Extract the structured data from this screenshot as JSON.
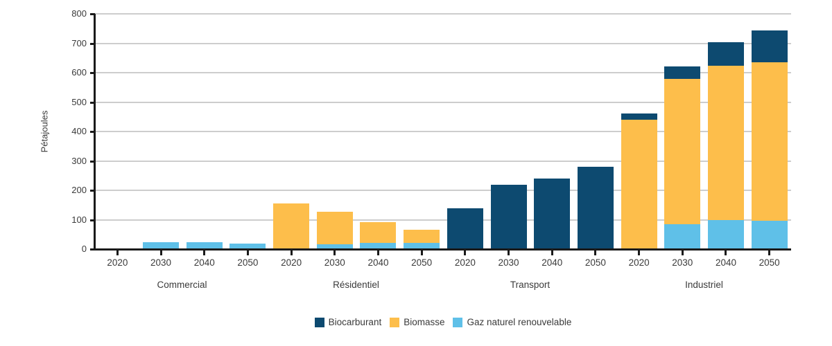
{
  "chart_data": {
    "type": "bar",
    "stacked": true,
    "grid": "horizontal",
    "ylabel": "Pétajoules",
    "xlabel": "",
    "ylim": [
      0,
      800
    ],
    "yticks": [
      0,
      100,
      200,
      300,
      400,
      500,
      600,
      700,
      800
    ],
    "legend_position": "bottom-center",
    "years": [
      "2020",
      "2030",
      "2040",
      "2050"
    ],
    "stack_bottom_to_top": [
      "gaz",
      "biomasse",
      "biocarburant"
    ],
    "series": [
      {
        "key": "biocarburant",
        "label": "Biocarburant",
        "color": "#0d4a70"
      },
      {
        "key": "biomasse",
        "label": "Biomasse",
        "color": "#fdbe4b"
      },
      {
        "key": "gaz",
        "label": "Gaz naturel renouvelable",
        "color": "#5fc0e8"
      }
    ],
    "groups": [
      {
        "label": "Commercial",
        "bars": [
          {
            "year": "2020",
            "segments": {
              "gaz": 0,
              "biomasse": 0,
              "biocarburant": 0
            }
          },
          {
            "year": "2030",
            "segments": {
              "gaz": 23,
              "biomasse": 0,
              "biocarburant": 0
            }
          },
          {
            "year": "2040",
            "segments": {
              "gaz": 23,
              "biomasse": 0,
              "biocarburant": 0
            }
          },
          {
            "year": "2050",
            "segments": {
              "gaz": 20,
              "biomasse": 0,
              "biocarburant": 0
            }
          }
        ]
      },
      {
        "label": "Résidentiel",
        "bars": [
          {
            "year": "2020",
            "segments": {
              "gaz": 0,
              "biomasse": 155,
              "biocarburant": 0
            }
          },
          {
            "year": "2030",
            "segments": {
              "gaz": 17,
              "biomasse": 110,
              "biocarburant": 0
            }
          },
          {
            "year": "2040",
            "segments": {
              "gaz": 21,
              "biomasse": 70,
              "biocarburant": 0
            }
          },
          {
            "year": "2050",
            "segments": {
              "gaz": 21,
              "biomasse": 44,
              "biocarburant": 0
            }
          }
        ]
      },
      {
        "label": "Transport",
        "bars": [
          {
            "year": "2020",
            "segments": {
              "gaz": 0,
              "biomasse": 0,
              "biocarburant": 139
            }
          },
          {
            "year": "2030",
            "segments": {
              "gaz": 0,
              "biomasse": 0,
              "biocarburant": 218
            }
          },
          {
            "year": "2040",
            "segments": {
              "gaz": 0,
              "biomasse": 0,
              "biocarburant": 240
            }
          },
          {
            "year": "2050",
            "segments": {
              "gaz": 0,
              "biomasse": 0,
              "biocarburant": 281
            }
          }
        ]
      },
      {
        "label": "Industriel",
        "bars": [
          {
            "year": "2020",
            "segments": {
              "gaz": 0,
              "biomasse": 441,
              "biocarburant": 21
            }
          },
          {
            "year": "2030",
            "segments": {
              "gaz": 85,
              "biomasse": 493,
              "biocarburant": 43
            }
          },
          {
            "year": "2040",
            "segments": {
              "gaz": 98,
              "biomasse": 525,
              "biocarburant": 80
            }
          },
          {
            "year": "2050",
            "segments": {
              "gaz": 96,
              "biomasse": 540,
              "biocarburant": 108
            }
          }
        ]
      }
    ],
    "style": {
      "gridline_color": "#cdcdcd",
      "axis_color": "#1a1a1a",
      "text_color": "#3a3a3a",
      "background": "#ffffff"
    }
  }
}
